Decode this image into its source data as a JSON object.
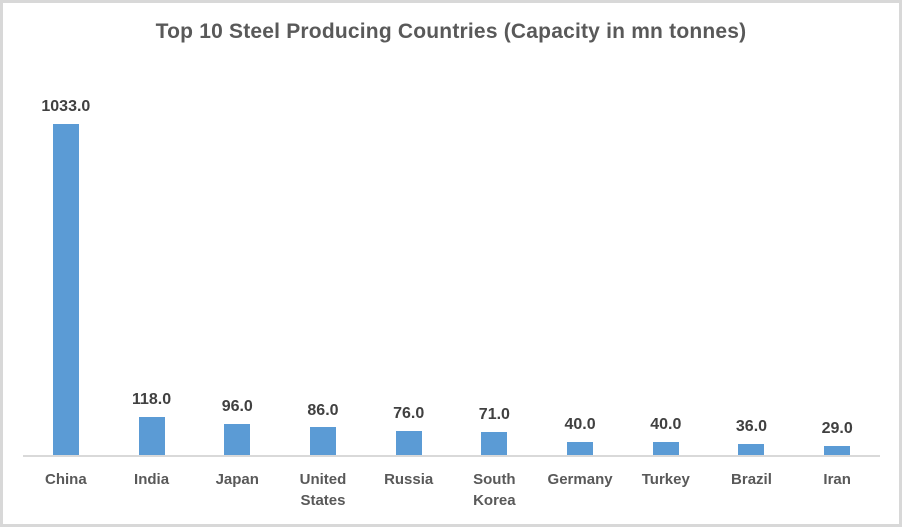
{
  "window": {
    "background_color": "#ffffff",
    "border_color": "#d8d8d8"
  },
  "chart_data": {
    "type": "bar",
    "title": "Top 10 Steel Producing Countries (Capacity in mn tonnes)",
    "categories": [
      "China",
      "India",
      "Japan",
      "United States",
      "Russia",
      "South Korea",
      "Germany",
      "Turkey",
      "Brazil",
      "Iran"
    ],
    "values": [
      1033.0,
      118.0,
      96.0,
      86.0,
      76.0,
      71.0,
      40.0,
      40.0,
      36.0,
      29.0
    ],
    "value_labels": [
      "1033.0",
      "118.0",
      "96.0",
      "86.0",
      "76.0",
      "71.0",
      "40.0",
      "40.0",
      "36.0",
      "29.0"
    ],
    "xlabel": "",
    "ylabel": "",
    "grid": false,
    "legend": false,
    "x_axis_line": true,
    "colors": {
      "bar": "#5b9bd5",
      "title_text": "#595959",
      "value_label_text": "#404040",
      "category_label_text": "#595959",
      "axis_line": "#d9d9d9"
    }
  }
}
